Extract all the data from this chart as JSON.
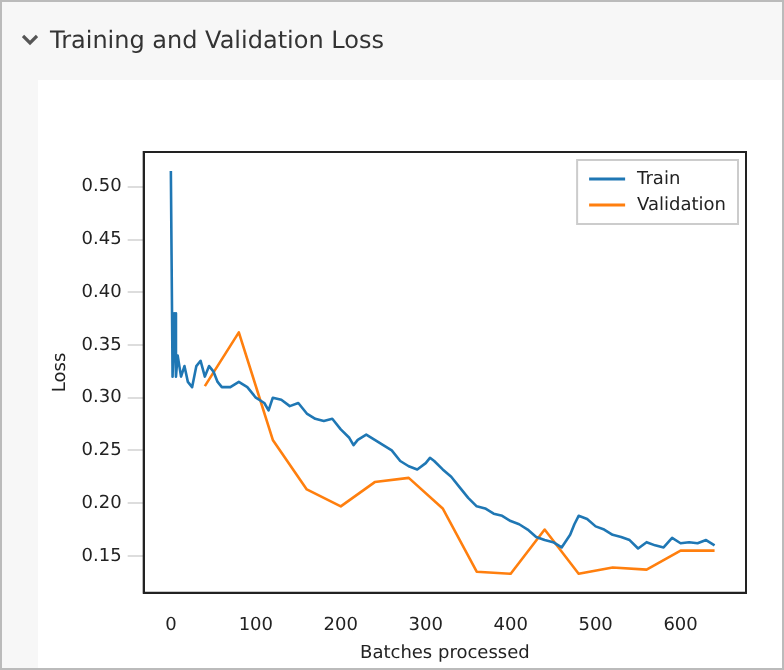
{
  "chart_data": {
    "type": "line",
    "title": "Training and Validation Loss",
    "xlabel": "Batches processed",
    "ylabel": "Loss",
    "xlim": [
      -32,
      677
    ],
    "ylim": [
      0.115,
      0.533
    ],
    "xticks": [
      0,
      100,
      200,
      300,
      400,
      500,
      600
    ],
    "yticks": [
      {
        "value": 0.15,
        "label": "0.15"
      },
      {
        "value": 0.2,
        "label": "0.20"
      },
      {
        "value": 0.25,
        "label": "0.25"
      },
      {
        "value": 0.3,
        "label": "0.30"
      },
      {
        "value": 0.35,
        "label": "0.35"
      },
      {
        "value": 0.4,
        "label": "0.40"
      },
      {
        "value": 0.45,
        "label": "0.45"
      },
      {
        "value": 0.5,
        "label": "0.50"
      }
    ],
    "grid": false,
    "legend": "top right",
    "series": [
      {
        "name": "Train",
        "color": "#1f77b4",
        "x": [
          0,
          2,
          4,
          6,
          8,
          12,
          16,
          20,
          25,
          30,
          35,
          40,
          45,
          50,
          55,
          60,
          70,
          80,
          90,
          100,
          110,
          115,
          120,
          130,
          140,
          150,
          160,
          170,
          180,
          190,
          200,
          210,
          215,
          220,
          230,
          240,
          250,
          260,
          270,
          280,
          290,
          300,
          305,
          310,
          320,
          330,
          340,
          350,
          360,
          370,
          380,
          390,
          400,
          410,
          420,
          430,
          440,
          450,
          460,
          470,
          475,
          480,
          490,
          500,
          510,
          520,
          530,
          540,
          550,
          560,
          570,
          580,
          590,
          600,
          610,
          620,
          630,
          640
        ],
        "values": [
          0.515,
          0.32,
          0.38,
          0.32,
          0.34,
          0.32,
          0.33,
          0.315,
          0.31,
          0.33,
          0.335,
          0.32,
          0.33,
          0.325,
          0.315,
          0.31,
          0.31,
          0.315,
          0.31,
          0.3,
          0.295,
          0.288,
          0.3,
          0.298,
          0.292,
          0.295,
          0.285,
          0.28,
          0.278,
          0.28,
          0.27,
          0.262,
          0.255,
          0.26,
          0.265,
          0.26,
          0.255,
          0.25,
          0.24,
          0.235,
          0.232,
          0.238,
          0.243,
          0.24,
          0.232,
          0.225,
          0.215,
          0.205,
          0.197,
          0.195,
          0.19,
          0.188,
          0.183,
          0.18,
          0.175,
          0.168,
          0.165,
          0.163,
          0.158,
          0.17,
          0.18,
          0.188,
          0.185,
          0.178,
          0.175,
          0.17,
          0.168,
          0.165,
          0.157,
          0.163,
          0.16,
          0.158,
          0.167,
          0.162,
          0.163,
          0.162,
          0.165,
          0.16
        ]
      },
      {
        "name": "Validation",
        "color": "#ff7f0e",
        "x": [
          40,
          80,
          120,
          160,
          200,
          240,
          280,
          320,
          360,
          400,
          440,
          480,
          520,
          560,
          600,
          640
        ],
        "values": [
          0.311,
          0.362,
          0.26,
          0.213,
          0.197,
          0.22,
          0.224,
          0.195,
          0.135,
          0.133,
          0.175,
          0.133,
          0.139,
          0.137,
          0.155,
          0.155
        ]
      }
    ]
  }
}
